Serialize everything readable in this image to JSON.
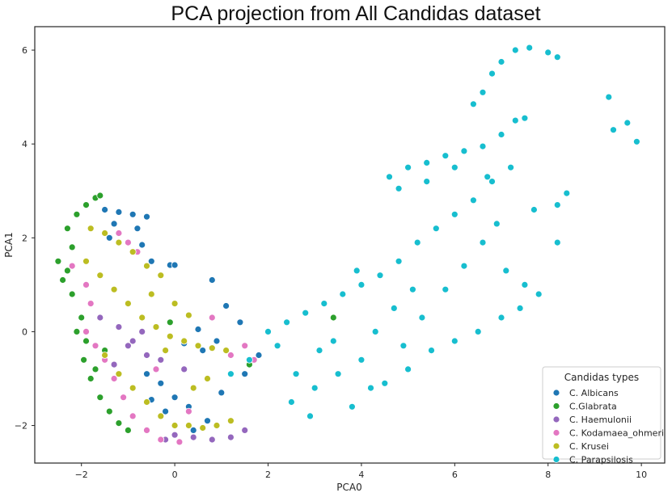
{
  "chart_data": {
    "type": "scatter",
    "title": "PCA projection from All Candidas dataset",
    "xlabel": "PCA0",
    "ylabel": "PCA1",
    "xlim": [
      -3.0,
      10.5
    ],
    "ylim": [
      -2.8,
      6.5
    ],
    "xticks": [
      -2,
      0,
      2,
      4,
      6,
      8,
      10
    ],
    "yticks": [
      -2,
      0,
      2,
      4,
      6
    ],
    "xtick_labels": [
      "−2",
      "0",
      "2",
      "4",
      "6",
      "8",
      "10"
    ],
    "ytick_labels": [
      "−2",
      "0",
      "2",
      "4",
      "6"
    ],
    "grid": false,
    "legend": {
      "title": "Candidas types",
      "placement": "lower-right"
    },
    "series": [
      {
        "name": "C. Albicans",
        "color": "#1f77b4",
        "points": [
          [
            -1.5,
            2.6
          ],
          [
            -1.2,
            2.55
          ],
          [
            -0.9,
            2.5
          ],
          [
            -0.6,
            2.45
          ],
          [
            -1.3,
            2.3
          ],
          [
            -0.8,
            2.2
          ],
          [
            -1.4,
            2.0
          ],
          [
            -1.0,
            1.9
          ],
          [
            -0.7,
            1.85
          ],
          [
            -0.1,
            1.42
          ],
          [
            -0.5,
            1.5
          ],
          [
            0.8,
            1.1
          ],
          [
            0.0,
            1.42
          ],
          [
            1.1,
            0.55
          ],
          [
            1.4,
            0.2
          ],
          [
            0.5,
            0.05
          ],
          [
            0.2,
            -0.25
          ],
          [
            0.6,
            -0.4
          ],
          [
            -0.6,
            -0.9
          ],
          [
            -0.3,
            -1.1
          ],
          [
            0.0,
            -1.4
          ],
          [
            0.3,
            -1.6
          ],
          [
            -0.5,
            -1.45
          ],
          [
            0.7,
            -1.9
          ],
          [
            1.0,
            -1.3
          ],
          [
            1.5,
            -0.9
          ],
          [
            0.9,
            -0.2
          ],
          [
            1.8,
            -0.5
          ],
          [
            -0.2,
            -1.7
          ],
          [
            0.4,
            -2.1
          ]
        ]
      },
      {
        "name": "C.Glabrata",
        "color": "#2ca02c",
        "points": [
          [
            -2.3,
            2.2
          ],
          [
            -2.1,
            2.5
          ],
          [
            -1.9,
            2.7
          ],
          [
            -1.7,
            2.85
          ],
          [
            -1.6,
            2.9
          ],
          [
            -2.2,
            1.8
          ],
          [
            -2.5,
            1.5
          ],
          [
            -2.4,
            1.1
          ],
          [
            -2.2,
            0.8
          ],
          [
            -2.0,
            0.3
          ],
          [
            -1.9,
            -0.2
          ],
          [
            -1.95,
            -0.6
          ],
          [
            -1.8,
            -1.0
          ],
          [
            -1.6,
            -1.4
          ],
          [
            -1.4,
            -1.7
          ],
          [
            -1.2,
            -1.95
          ],
          [
            -1.0,
            -2.1
          ],
          [
            -2.1,
            0.0
          ],
          [
            -2.3,
            1.3
          ],
          [
            -1.7,
            -0.8
          ],
          [
            3.4,
            0.3
          ],
          [
            -0.1,
            0.2
          ],
          [
            1.6,
            -0.7
          ],
          [
            -1.5,
            -0.4
          ]
        ]
      },
      {
        "name": "C. Haemulonii",
        "color": "#9467bd",
        "points": [
          [
            -1.6,
            0.3
          ],
          [
            -1.2,
            0.1
          ],
          [
            -0.9,
            -0.2
          ],
          [
            -0.6,
            -0.5
          ],
          [
            -0.3,
            -0.6
          ],
          [
            -1.3,
            -0.7
          ],
          [
            0.0,
            -2.2
          ],
          [
            0.4,
            -2.25
          ],
          [
            0.8,
            -2.3
          ],
          [
            1.2,
            -2.25
          ],
          [
            1.5,
            -2.1
          ],
          [
            -0.2,
            -2.3
          ],
          [
            -1.0,
            -0.3
          ],
          [
            0.2,
            -0.8
          ],
          [
            -0.7,
            0.0
          ]
        ]
      },
      {
        "name": "C. Kodamaea_ohmeri",
        "color": "#e377c2",
        "points": [
          [
            -2.2,
            1.4
          ],
          [
            -1.9,
            1.0
          ],
          [
            -1.8,
            0.6
          ],
          [
            -1.9,
            0.0
          ],
          [
            -1.7,
            -0.3
          ],
          [
            -1.5,
            -0.6
          ],
          [
            -1.3,
            -1.0
          ],
          [
            -1.1,
            -1.4
          ],
          [
            -0.9,
            -1.8
          ],
          [
            -0.6,
            -2.1
          ],
          [
            -0.3,
            -2.3
          ],
          [
            0.1,
            -2.35
          ],
          [
            -1.0,
            1.9
          ],
          [
            -0.8,
            1.7
          ],
          [
            -1.2,
            2.1
          ],
          [
            0.8,
            0.3
          ],
          [
            1.2,
            -0.5
          ],
          [
            1.7,
            -0.6
          ],
          [
            1.5,
            -0.3
          ],
          [
            -0.4,
            -0.8
          ],
          [
            0.3,
            -1.7
          ]
        ]
      },
      {
        "name": "C. Krusei",
        "color": "#bcbd22",
        "points": [
          [
            -1.8,
            2.2
          ],
          [
            -1.5,
            2.1
          ],
          [
            -1.2,
            1.9
          ],
          [
            -0.9,
            1.7
          ],
          [
            -0.6,
            1.4
          ],
          [
            -0.3,
            1.2
          ],
          [
            -1.9,
            1.5
          ],
          [
            -1.6,
            1.2
          ],
          [
            -1.3,
            0.9
          ],
          [
            -1.0,
            0.6
          ],
          [
            -0.7,
            0.3
          ],
          [
            -0.4,
            0.1
          ],
          [
            -0.1,
            -0.1
          ],
          [
            0.2,
            -0.2
          ],
          [
            0.5,
            -0.3
          ],
          [
            0.8,
            -0.35
          ],
          [
            1.1,
            -0.4
          ],
          [
            -1.5,
            -0.5
          ],
          [
            -1.2,
            -0.9
          ],
          [
            -0.9,
            -1.2
          ],
          [
            -0.6,
            -1.5
          ],
          [
            -0.3,
            -1.8
          ],
          [
            0.0,
            -2.0
          ],
          [
            0.3,
            -2.0
          ],
          [
            0.6,
            -2.05
          ],
          [
            0.9,
            -2.0
          ],
          [
            1.2,
            -1.9
          ],
          [
            0.3,
            0.35
          ],
          [
            0.0,
            0.6
          ],
          [
            -0.5,
            0.8
          ],
          [
            -0.2,
            -0.4
          ],
          [
            0.4,
            -1.2
          ],
          [
            0.7,
            -1.0
          ]
        ]
      },
      {
        "name": "C. Parapsilosis",
        "color": "#17becf",
        "points": [
          [
            2.0,
            0.0
          ],
          [
            2.4,
            0.2
          ],
          [
            2.8,
            0.4
          ],
          [
            3.2,
            0.6
          ],
          [
            3.6,
            0.8
          ],
          [
            4.0,
            1.0
          ],
          [
            4.4,
            1.2
          ],
          [
            4.8,
            1.5
          ],
          [
            5.2,
            1.9
          ],
          [
            5.6,
            2.2
          ],
          [
            6.0,
            2.5
          ],
          [
            6.4,
            2.8
          ],
          [
            6.8,
            3.2
          ],
          [
            7.2,
            3.5
          ],
          [
            4.6,
            3.3
          ],
          [
            5.0,
            3.5
          ],
          [
            5.4,
            3.6
          ],
          [
            5.8,
            3.75
          ],
          [
            6.2,
            3.85
          ],
          [
            6.6,
            3.95
          ],
          [
            7.0,
            4.2
          ],
          [
            7.3,
            4.5
          ],
          [
            7.5,
            4.55
          ],
          [
            6.6,
            5.1
          ],
          [
            6.8,
            5.5
          ],
          [
            7.0,
            5.75
          ],
          [
            7.3,
            6.0
          ],
          [
            7.6,
            6.05
          ],
          [
            8.0,
            5.95
          ],
          [
            8.2,
            5.85
          ],
          [
            6.4,
            4.85
          ],
          [
            9.3,
            5.0
          ],
          [
            9.7,
            4.45
          ],
          [
            9.9,
            4.05
          ],
          [
            9.4,
            4.3
          ],
          [
            2.5,
            -1.5
          ],
          [
            3.0,
            -1.2
          ],
          [
            3.5,
            -0.9
          ],
          [
            4.0,
            -0.6
          ],
          [
            4.5,
            -1.1
          ],
          [
            5.0,
            -0.8
          ],
          [
            5.5,
            -0.4
          ],
          [
            6.0,
            -0.2
          ],
          [
            6.5,
            0.0
          ],
          [
            7.0,
            0.3
          ],
          [
            7.4,
            0.5
          ],
          [
            7.8,
            0.8
          ],
          [
            8.2,
            1.9
          ],
          [
            8.4,
            2.95
          ],
          [
            8.2,
            2.7
          ],
          [
            1.2,
            -0.9
          ],
          [
            1.6,
            -0.6
          ],
          [
            2.2,
            -0.3
          ],
          [
            2.6,
            -0.9
          ],
          [
            3.1,
            -0.4
          ],
          [
            3.8,
            -1.6
          ],
          [
            4.2,
            -1.2
          ],
          [
            4.9,
            -0.3
          ],
          [
            5.3,
            0.3
          ],
          [
            5.8,
            0.9
          ],
          [
            6.2,
            1.4
          ],
          [
            6.6,
            1.9
          ],
          [
            7.1,
            1.3
          ],
          [
            7.5,
            1.0
          ],
          [
            5.1,
            0.9
          ],
          [
            4.7,
            0.5
          ],
          [
            3.9,
            1.3
          ],
          [
            4.3,
            0.0
          ],
          [
            6.9,
            2.3
          ],
          [
            7.7,
            2.6
          ],
          [
            4.8,
            3.05
          ],
          [
            5.4,
            3.2
          ],
          [
            6.0,
            3.5
          ],
          [
            6.7,
            3.3
          ],
          [
            2.9,
            -1.8
          ],
          [
            3.4,
            -0.2
          ]
        ]
      }
    ]
  }
}
